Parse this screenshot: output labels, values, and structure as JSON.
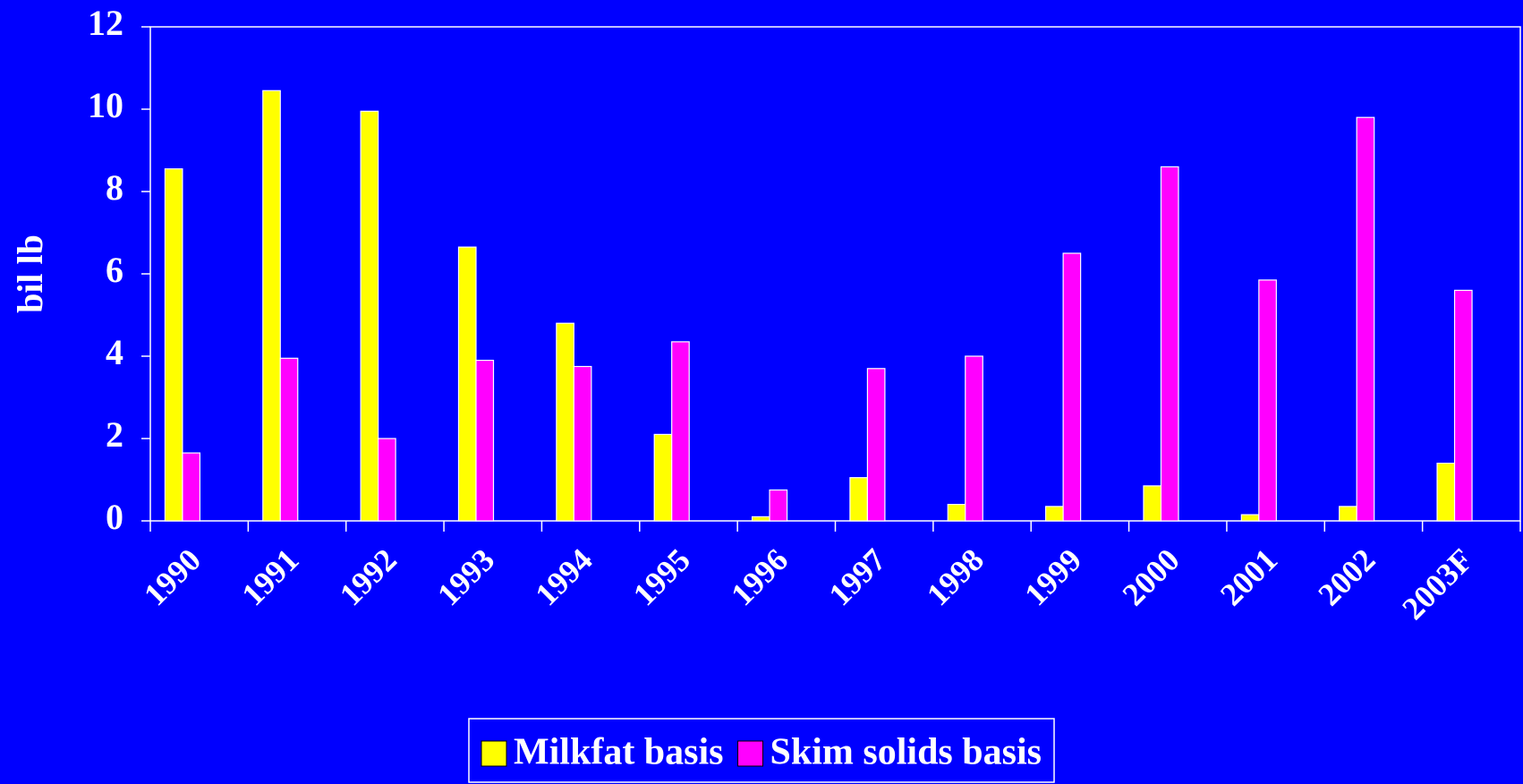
{
  "chart_data": {
    "type": "bar",
    "y_label": "bil lb",
    "categories": [
      "1990",
      "1991",
      "1992",
      "1993",
      "1994",
      "1995",
      "1996",
      "1997",
      "1998",
      "1999",
      "2000",
      "2001",
      "2002",
      "2003F"
    ],
    "series": [
      {
        "name": "Milkfat basis",
        "color": "#ffff00",
        "values": [
          8.55,
          10.45,
          9.95,
          6.65,
          4.8,
          2.1,
          0.1,
          1.05,
          0.4,
          0.35,
          0.85,
          0.15,
          0.35,
          1.4
        ]
      },
      {
        "name": "Skim solids basis",
        "color": "#ff00ff",
        "values": [
          1.65,
          3.95,
          2.0,
          3.9,
          3.75,
          4.35,
          0.75,
          3.7,
          4.0,
          6.5,
          8.6,
          5.85,
          9.8,
          5.6
        ]
      }
    ],
    "ylim": [
      0,
      12
    ],
    "yticks": [
      0,
      2,
      4,
      6,
      8,
      10,
      12
    ],
    "background": "#0000ff",
    "legend": "bottom",
    "grid": false
  }
}
